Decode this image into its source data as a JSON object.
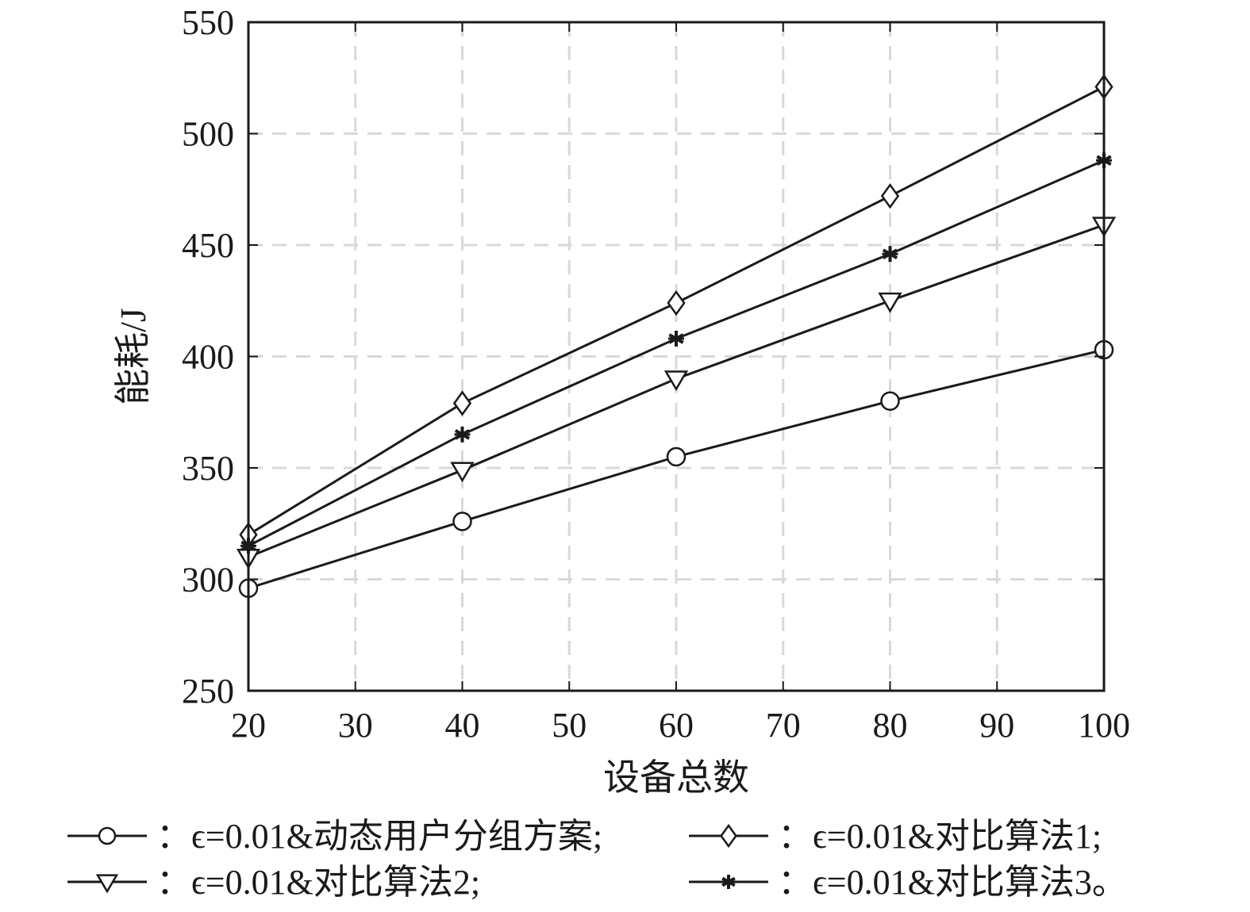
{
  "chart_data": {
    "type": "line",
    "xlabel": "设备总数",
    "ylabel": "能耗/J",
    "xlim": [
      20,
      100
    ],
    "ylim": [
      250,
      550
    ],
    "xticks": [
      20,
      30,
      40,
      50,
      60,
      70,
      80,
      90,
      100
    ],
    "yticks": [
      250,
      300,
      350,
      400,
      450,
      500,
      550
    ],
    "grid": true,
    "legend_position": "bottom",
    "x": [
      20,
      40,
      60,
      80,
      100
    ],
    "series": [
      {
        "name": "：ϵ=0.01&动态用户分组方案;",
        "marker": "circle",
        "values": [
          296,
          326,
          355,
          380,
          403
        ]
      },
      {
        "name": "：ϵ=0.01&对比算法1;",
        "marker": "diamond",
        "values": [
          320,
          379,
          424,
          472,
          521
        ]
      },
      {
        "name": "：ϵ=0.01&对比算法2;",
        "marker": "triangle-down",
        "values": [
          310,
          349,
          390,
          425,
          459
        ]
      },
      {
        "name": "：ϵ=0.01&对比算法3。",
        "marker": "asterisk",
        "values": [
          315,
          365,
          408,
          446,
          488
        ]
      }
    ],
    "colors": {
      "line": "#1a1a1a",
      "grid": "#d9d9d9"
    }
  }
}
